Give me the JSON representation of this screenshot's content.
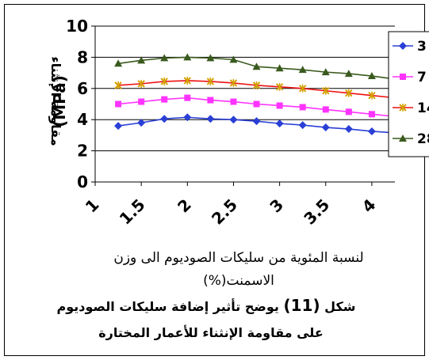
{
  "chart_data": {
    "type": "line",
    "title": "",
    "ylabel": "مقاومة الإنثناء",
    "ylabel_unit": "(MPa)",
    "xlabel": "لنسبة المئوية من سليكات الصوديوم  الى وزن الاسمنت(%)",
    "xlabel_line1": "لنسبة المئوية من سليكات الصوديوم  الى وزن",
    "xlabel_line2": "الاسمنت(%)",
    "caption_line1_prefix": "شكل ",
    "caption_line1_num": "(11)",
    "caption_line1_rest": " يوضح تأثير إضافة سليكات الصوديوم",
    "caption_line2": "على مقاومة الإنثناء للأعمار المختارة",
    "x_tick_labels": [
      "1",
      "1.5",
      "2",
      "2.5",
      "3",
      "3.5",
      "4"
    ],
    "y_tick_labels": [
      "0",
      "2",
      "4",
      "6",
      "8",
      "10"
    ],
    "ylim": [
      0,
      10
    ],
    "xlim": [
      1,
      4.25
    ],
    "grid": "horizontal",
    "legend_placement": "right",
    "x": [
      1.25,
      1.5,
      1.75,
      2.0,
      2.25,
      2.5,
      2.75,
      3.0,
      3.25,
      3.5,
      3.75,
      4.0,
      4.25
    ],
    "series": [
      {
        "name": "3",
        "color": "#2a3fd6",
        "marker": "diamond",
        "values": [
          3.6,
          3.8,
          4.05,
          4.15,
          4.05,
          4.0,
          3.9,
          3.75,
          3.65,
          3.5,
          3.4,
          3.25,
          3.15
        ]
      },
      {
        "name": "7",
        "color": "#ff33ff",
        "marker": "square",
        "values": [
          5.0,
          5.15,
          5.3,
          5.4,
          5.25,
          5.15,
          5.0,
          4.9,
          4.8,
          4.65,
          4.5,
          4.35,
          4.2
        ]
      },
      {
        "name": "14",
        "color": "#ee1111",
        "marker": "x",
        "values": [
          6.2,
          6.3,
          6.45,
          6.5,
          6.45,
          6.35,
          6.2,
          6.1,
          6.0,
          5.85,
          5.7,
          5.55,
          5.4
        ]
      },
      {
        "name": "28",
        "color": "#3a5a1e",
        "marker": "triangle",
        "values": [
          7.6,
          7.8,
          7.95,
          8.0,
          7.95,
          7.85,
          7.4,
          7.3,
          7.2,
          7.05,
          6.95,
          6.8,
          6.6
        ]
      }
    ]
  }
}
